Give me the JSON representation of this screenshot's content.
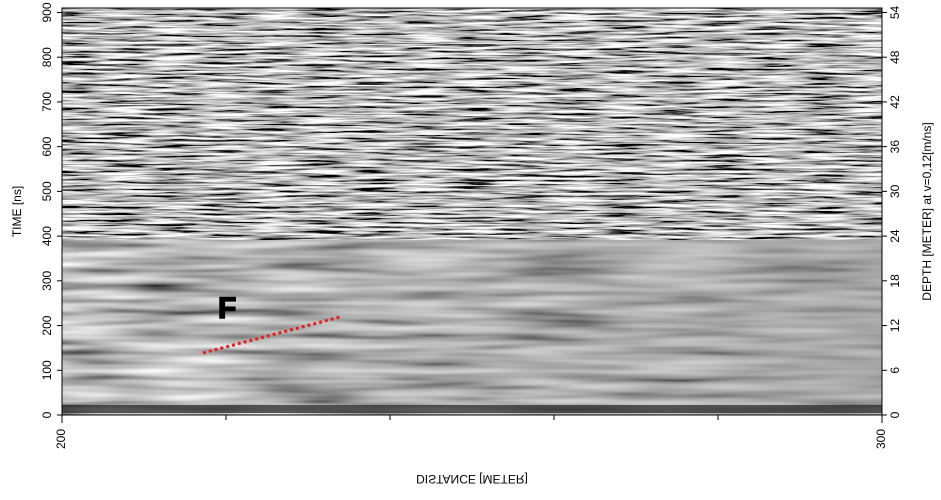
{
  "chart_data": {
    "type": "radargram",
    "xlabel": "DISTANCE [METER]",
    "ylabel": "TIME [ns]",
    "y2label": "DEPTH [METER] at v=0,12[m/ns]",
    "annotations": [
      "F"
    ],
    "xlim": [
      200,
      300
    ],
    "xticks": [
      200,
      300
    ],
    "xminorticks": [
      220,
      240,
      260,
      280
    ],
    "ylim": [
      0,
      910
    ],
    "yticks": [
      0,
      100,
      200,
      300,
      400,
      500,
      600,
      700,
      800,
      900
    ],
    "y2lim": [
      0,
      54.6
    ],
    "y2ticks": [
      0,
      6,
      12,
      18,
      24,
      30,
      36,
      42,
      48,
      54
    ],
    "line_color": "#e02020"
  }
}
